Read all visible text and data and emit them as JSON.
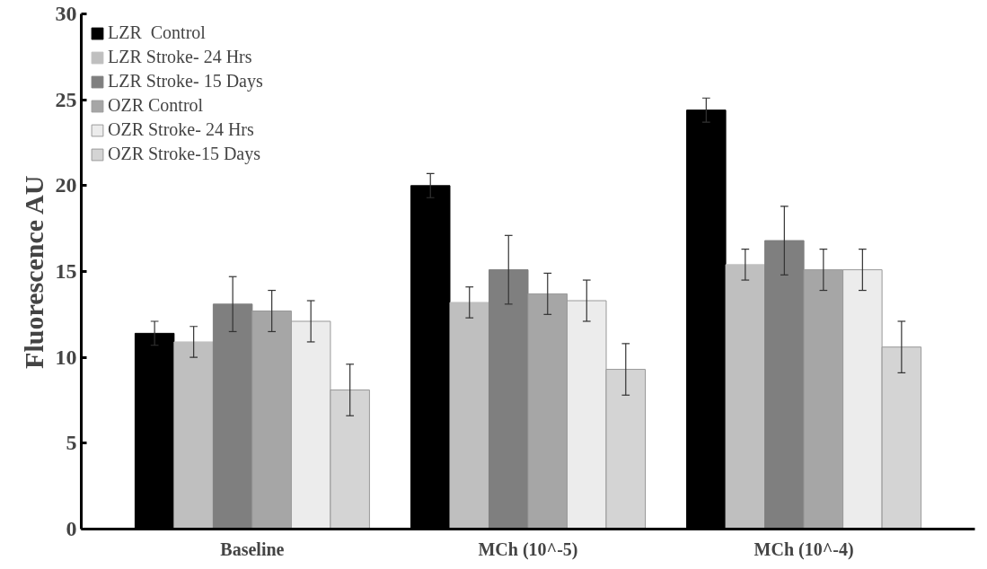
{
  "chart_data": {
    "type": "bar",
    "ylabel": "Fluorescence AU",
    "categories": [
      "Baseline",
      "MCh (10^-5)",
      "MCh (10^-4)"
    ],
    "series": [
      {
        "name": "LZR  Control",
        "color": "#000000",
        "values": [
          11.4,
          20.0,
          24.4
        ],
        "errors": [
          0.7,
          0.7,
          0.7
        ]
      },
      {
        "name": "LZR Stroke- 24 Hrs",
        "color": "#bfbfbf",
        "values": [
          10.9,
          13.2,
          15.4
        ],
        "errors": [
          0.9,
          0.9,
          0.9
        ]
      },
      {
        "name": "LZR Stroke- 15 Days",
        "color": "#7f7f7f",
        "values": [
          13.1,
          15.1,
          16.8
        ],
        "errors": [
          1.6,
          2.0,
          2.0
        ]
      },
      {
        "name": "OZR Control",
        "color": "#a6a6a6",
        "values": [
          12.7,
          13.7,
          15.1
        ],
        "errors": [
          1.2,
          1.2,
          1.2
        ]
      },
      {
        "name": "OZR Stroke- 24 Hrs",
        "color": "#ececec",
        "values": [
          12.1,
          13.3,
          15.1
        ],
        "errors": [
          1.2,
          1.2,
          1.2
        ]
      },
      {
        "name": "OZR Stroke-15 Days",
        "color": "#d4d4d4",
        "values": [
          8.1,
          9.3,
          10.6
        ],
        "errors": [
          1.5,
          1.5,
          1.5
        ]
      }
    ],
    "ylim": [
      0,
      30
    ],
    "yticks": [
      0,
      5,
      10,
      15,
      20,
      25,
      30
    ],
    "legend": "top left"
  }
}
